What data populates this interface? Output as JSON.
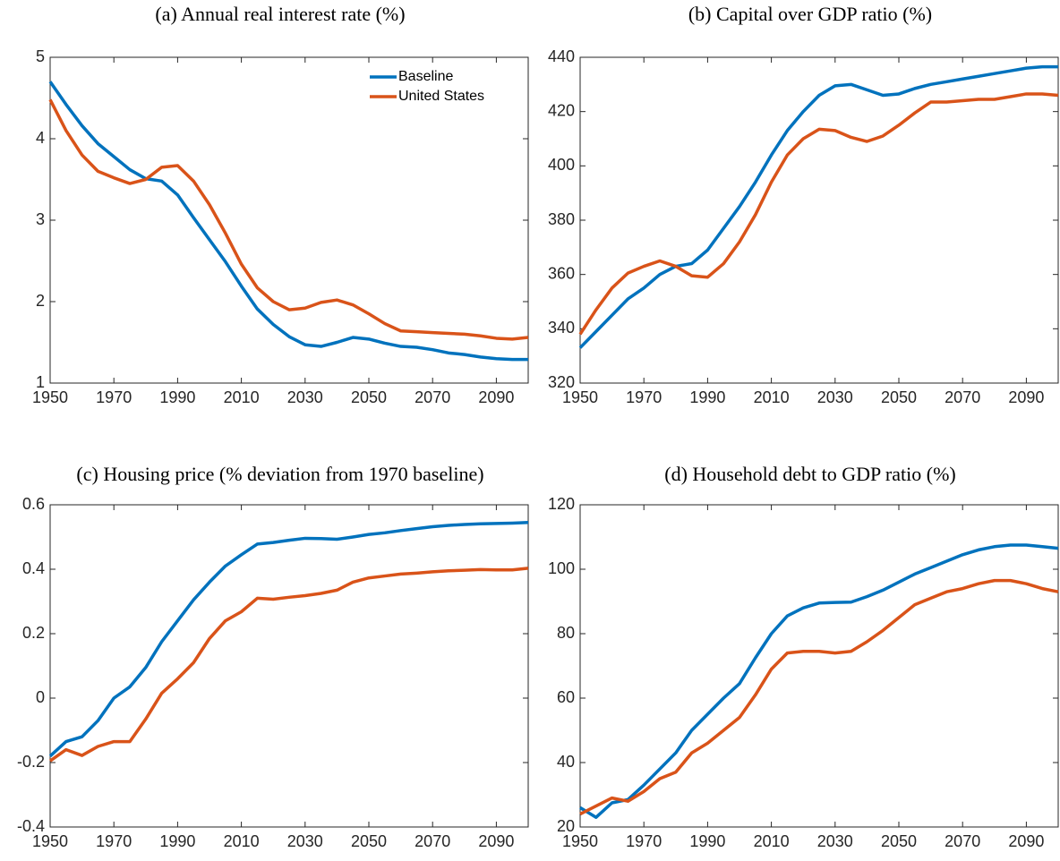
{
  "chart_data": [
    {
      "type": "line",
      "title": "(a) Annual real interest rate (%)",
      "x": [
        1950,
        1955,
        1960,
        1965,
        1970,
        1975,
        1980,
        1985,
        1990,
        1995,
        2000,
        2005,
        2010,
        2015,
        2020,
        2025,
        2030,
        2035,
        2040,
        2045,
        2050,
        2055,
        2060,
        2065,
        2070,
        2075,
        2080,
        2085,
        2090,
        2095,
        2100
      ],
      "xlim": [
        1950,
        2100
      ],
      "xticks": [
        1950,
        1970,
        1990,
        2010,
        2030,
        2050,
        2070,
        2090
      ],
      "ylim": [
        1,
        5
      ],
      "yticks": [
        1,
        2,
        3,
        4,
        5
      ],
      "legend": "top-right",
      "series": [
        {
          "name": "Baseline",
          "color": "#0072BD",
          "values": [
            4.7,
            4.42,
            4.16,
            3.94,
            3.78,
            3.62,
            3.51,
            3.48,
            3.31,
            3.03,
            2.76,
            2.49,
            2.19,
            1.91,
            1.72,
            1.57,
            1.47,
            1.45,
            1.5,
            1.56,
            1.54,
            1.49,
            1.45,
            1.44,
            1.41,
            1.37,
            1.35,
            1.32,
            1.3,
            1.29,
            1.29
          ]
        },
        {
          "name": "United States",
          "color": "#D95319",
          "values": [
            4.48,
            4.1,
            3.8,
            3.6,
            3.52,
            3.45,
            3.5,
            3.65,
            3.67,
            3.48,
            3.19,
            2.84,
            2.46,
            2.17,
            2.0,
            1.9,
            1.92,
            1.99,
            2.02,
            1.96,
            1.85,
            1.73,
            1.64,
            1.63,
            1.62,
            1.61,
            1.6,
            1.58,
            1.55,
            1.54,
            1.56
          ]
        }
      ]
    },
    {
      "type": "line",
      "title": "(b) Capital over GDP ratio (%)",
      "x": [
        1950,
        1955,
        1960,
        1965,
        1970,
        1975,
        1980,
        1985,
        1990,
        1995,
        2000,
        2005,
        2010,
        2015,
        2020,
        2025,
        2030,
        2035,
        2040,
        2045,
        2050,
        2055,
        2060,
        2065,
        2070,
        2075,
        2080,
        2085,
        2090,
        2095,
        2100
      ],
      "xlim": [
        1950,
        2100
      ],
      "xticks": [
        1950,
        1970,
        1990,
        2010,
        2030,
        2050,
        2070,
        2090
      ],
      "ylim": [
        320,
        440
      ],
      "yticks": [
        320,
        340,
        360,
        380,
        400,
        420,
        440
      ],
      "series": [
        {
          "color": "#0072BD",
          "values": [
            333,
            339,
            345,
            351,
            355,
            360,
            363,
            364,
            369,
            377,
            385,
            394,
            404,
            413,
            420,
            426,
            429.5,
            430,
            428,
            426,
            426.5,
            428.5,
            430,
            431,
            432,
            433,
            434,
            435,
            436,
            436.5,
            436.5
          ]
        },
        {
          "color": "#D95319",
          "values": [
            338,
            347,
            355,
            360.5,
            363,
            365,
            363,
            359.5,
            359,
            364,
            372,
            382,
            394,
            404,
            410,
            413.5,
            413,
            410.5,
            409,
            411,
            415,
            419.5,
            423.5,
            423.5,
            424,
            424.5,
            424.5,
            425.5,
            426.5,
            426.5,
            426
          ]
        }
      ]
    },
    {
      "type": "line",
      "title": "(c) Housing price (% deviation from 1970 baseline)",
      "x": [
        1950,
        1955,
        1960,
        1965,
        1970,
        1975,
        1980,
        1985,
        1990,
        1995,
        2000,
        2005,
        2010,
        2015,
        2020,
        2025,
        2030,
        2035,
        2040,
        2045,
        2050,
        2055,
        2060,
        2065,
        2070,
        2075,
        2080,
        2085,
        2090,
        2095,
        2100
      ],
      "xlim": [
        1950,
        2100
      ],
      "xticks": [
        1950,
        1970,
        1990,
        2010,
        2030,
        2050,
        2070,
        2090
      ],
      "ylim": [
        -0.4,
        0.6
      ],
      "yticks": [
        -0.4,
        -0.2,
        0,
        0.2,
        0.4,
        0.6
      ],
      "series": [
        {
          "color": "#0072BD",
          "values": [
            -0.18,
            -0.135,
            -0.12,
            -0.07,
            0.0,
            0.035,
            0.095,
            0.175,
            0.24,
            0.305,
            0.36,
            0.41,
            0.445,
            0.478,
            0.483,
            0.49,
            0.496,
            0.495,
            0.493,
            0.5,
            0.508,
            0.513,
            0.52,
            0.526,
            0.532,
            0.536,
            0.539,
            0.541,
            0.542,
            0.543,
            0.545
          ]
        },
        {
          "color": "#D95319",
          "values": [
            -0.195,
            -0.16,
            -0.178,
            -0.15,
            -0.135,
            -0.135,
            -0.065,
            0.015,
            0.06,
            0.11,
            0.185,
            0.24,
            0.268,
            0.31,
            0.307,
            0.313,
            0.318,
            0.325,
            0.335,
            0.36,
            0.373,
            0.379,
            0.385,
            0.388,
            0.392,
            0.395,
            0.397,
            0.399,
            0.398,
            0.398,
            0.403
          ]
        }
      ]
    },
    {
      "type": "line",
      "title": "(d) Household debt to GDP ratio (%)",
      "x": [
        1950,
        1955,
        1960,
        1965,
        1970,
        1975,
        1980,
        1985,
        1990,
        1995,
        2000,
        2005,
        2010,
        2015,
        2020,
        2025,
        2030,
        2035,
        2040,
        2045,
        2050,
        2055,
        2060,
        2065,
        2070,
        2075,
        2080,
        2085,
        2090,
        2095,
        2100
      ],
      "xlim": [
        1950,
        2100
      ],
      "xticks": [
        1950,
        1970,
        1990,
        2010,
        2030,
        2050,
        2070,
        2090
      ],
      "ylim": [
        20,
        120
      ],
      "yticks": [
        20,
        40,
        60,
        80,
        100,
        120
      ],
      "series": [
        {
          "color": "#0072BD",
          "values": [
            26,
            23,
            27.5,
            28.5,
            33,
            38,
            43,
            50,
            55,
            60,
            64.5,
            72.5,
            80,
            85.5,
            88,
            89.5,
            89.7,
            89.8,
            91.5,
            93.5,
            96,
            98.5,
            100.5,
            102.5,
            104.5,
            106,
            107,
            107.5,
            107.5,
            107,
            106.5
          ]
        },
        {
          "color": "#D95319",
          "values": [
            24,
            26.5,
            29,
            28,
            31,
            35,
            37,
            43,
            46,
            50,
            54,
            61,
            69,
            74,
            74.5,
            74.5,
            74,
            74.5,
            77.5,
            81,
            85,
            89,
            91,
            93,
            94,
            95.5,
            96.5,
            96.5,
            95.5,
            94,
            93
          ]
        }
      ]
    }
  ]
}
